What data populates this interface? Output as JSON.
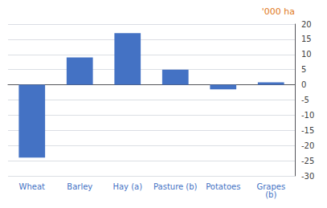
{
  "chart_data": {
    "type": "bar",
    "ylabel": "'000 ha",
    "categories": [
      "Wheat",
      "Barley",
      "Hay (a)",
      "Pasture (b)",
      "Potatoes",
      "Grapes\n(b)"
    ],
    "values": [
      -24,
      9,
      17,
      5,
      -1.5,
      0.8
    ],
    "color": "#4472C4",
    "ylim": [
      -30,
      20
    ],
    "yticks": [
      -30,
      -25,
      -20,
      -15,
      -10,
      -5,
      0,
      5,
      10,
      15,
      20
    ],
    "grid": true
  }
}
